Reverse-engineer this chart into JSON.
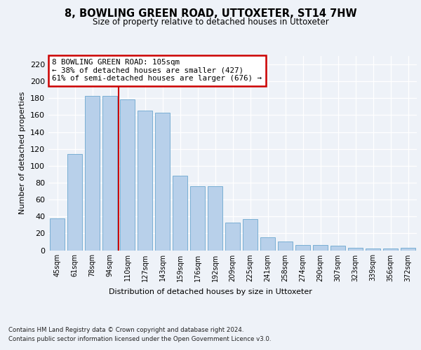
{
  "title": "8, BOWLING GREEN ROAD, UTTOXETER, ST14 7HW",
  "subtitle": "Size of property relative to detached houses in Uttoxeter",
  "xlabel": "Distribution of detached houses by size in Uttoxeter",
  "ylabel": "Number of detached properties",
  "categories": [
    "45sqm",
    "61sqm",
    "78sqm",
    "94sqm",
    "110sqm",
    "127sqm",
    "143sqm",
    "159sqm",
    "176sqm",
    "192sqm",
    "209sqm",
    "225sqm",
    "241sqm",
    "258sqm",
    "274sqm",
    "290sqm",
    "307sqm",
    "323sqm",
    "339sqm",
    "356sqm",
    "372sqm"
  ],
  "values": [
    38,
    114,
    183,
    183,
    179,
    165,
    163,
    88,
    76,
    76,
    33,
    37,
    15,
    10,
    6,
    6,
    5,
    3,
    2,
    2,
    3
  ],
  "bar_color": "#b8d0ea",
  "bar_edge_color": "#7aafd4",
  "vline_index": 4,
  "vline_color": "#cc0000",
  "annotation_text": "8 BOWLING GREEN ROAD: 105sqm\n← 38% of detached houses are smaller (427)\n61% of semi-detached houses are larger (676) →",
  "annotation_box_color": "#ffffff",
  "annotation_box_edge_color": "#cc0000",
  "ylim": [
    0,
    230
  ],
  "yticks": [
    0,
    20,
    40,
    60,
    80,
    100,
    120,
    140,
    160,
    180,
    200,
    220
  ],
  "background_color": "#eef2f8",
  "grid_color": "#ffffff",
  "footer_line1": "Contains HM Land Registry data © Crown copyright and database right 2024.",
  "footer_line2": "Contains public sector information licensed under the Open Government Licence v3.0."
}
